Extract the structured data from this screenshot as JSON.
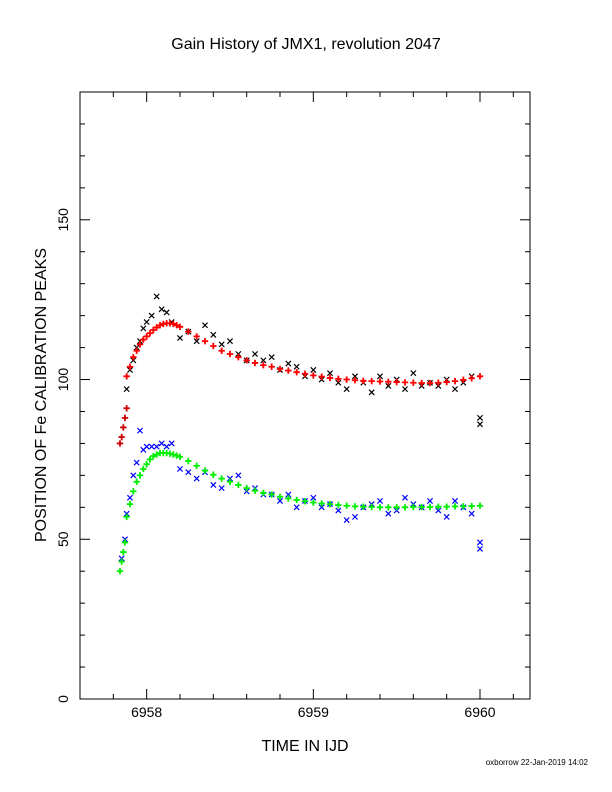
{
  "chart_data": {
    "type": "scatter",
    "title": "Gain History of JMX1, revolution 2047",
    "xlabel": "TIME IN IJD",
    "ylabel": "POSITION OF Fe CALIBRATION PEAKS",
    "xlim": [
      6957.6,
      6960.3
    ],
    "ylim": [
      0,
      190
    ],
    "x_ticks": [
      6958,
      6959,
      6960
    ],
    "y_ticks": [
      0,
      50,
      100,
      150
    ],
    "grid": false,
    "colors": {
      "red": "#ff0000",
      "black": "#000000",
      "green": "#00ee00",
      "blue": "#0000ff",
      "darkred": "#cc0000"
    },
    "series": [
      {
        "color": "#000000",
        "marker": "x",
        "x": [
          6957.88,
          6957.9,
          6957.92,
          6957.94,
          6957.96,
          6957.98,
          6958.0,
          6958.03,
          6958.06,
          6958.09,
          6958.12,
          6958.15,
          6958.2,
          6958.25,
          6958.3,
          6958.35,
          6958.4,
          6958.45,
          6958.5,
          6958.55,
          6958.6,
          6958.65,
          6958.7,
          6958.75,
          6958.8,
          6958.85,
          6958.9,
          6958.95,
          6959.0,
          6959.05,
          6959.1,
          6959.15,
          6959.2,
          6959.25,
          6959.3,
          6959.35,
          6959.4,
          6959.45,
          6959.5,
          6959.55,
          6959.6,
          6959.65,
          6959.7,
          6959.75,
          6959.8,
          6959.85,
          6959.9,
          6959.95,
          6960.0,
          6960.0
        ],
        "y": [
          97,
          103,
          106,
          110,
          112,
          116,
          118,
          120,
          126,
          122,
          121,
          118,
          113,
          115,
          112,
          117,
          114,
          111,
          112,
          108,
          106,
          108,
          106,
          107,
          103,
          105,
          104,
          101,
          103,
          100,
          102,
          99,
          97,
          101,
          99,
          96,
          101,
          98,
          100,
          97,
          102,
          98,
          99,
          98,
          100,
          97,
          99,
          101,
          88,
          86
        ]
      },
      {
        "color": "#ff0000",
        "marker": "+",
        "x": [
          6957.88,
          6957.9,
          6957.92,
          6957.94,
          6957.96,
          6957.98,
          6958.0,
          6958.02,
          6958.04,
          6958.06,
          6958.08,
          6958.1,
          6958.12,
          6958.14,
          6958.16,
          6958.18,
          6958.2,
          6958.25,
          6958.3,
          6958.35,
          6958.4,
          6958.45,
          6958.5,
          6958.55,
          6958.6,
          6958.65,
          6958.7,
          6958.75,
          6958.8,
          6958.85,
          6958.9,
          6958.95,
          6959.0,
          6959.05,
          6959.1,
          6959.15,
          6959.2,
          6959.25,
          6959.3,
          6959.35,
          6959.4,
          6959.45,
          6959.5,
          6959.55,
          6959.6,
          6959.65,
          6959.7,
          6959.75,
          6959.8,
          6959.85,
          6959.9,
          6959.95,
          6960.0
        ],
        "y": [
          101,
          104,
          107,
          109,
          111,
          112.5,
          113.5,
          114.5,
          115.5,
          116.3,
          117,
          117.4,
          117.6,
          117.6,
          117.4,
          117,
          116.5,
          115,
          113.5,
          112,
          110.5,
          109,
          108,
          107,
          106,
          105.2,
          104.5,
          104,
          103.3,
          102.8,
          102.3,
          101.8,
          101.3,
          100.9,
          100.5,
          100.2,
          100,
          99.8,
          99.6,
          99.5,
          99.4,
          99.3,
          99.2,
          99.1,
          99,
          98.9,
          98.9,
          99,
          99.2,
          99.5,
          99.9,
          100.4,
          101
        ]
      },
      {
        "color": "#cc0000",
        "marker": "+",
        "x": [
          6957.84,
          6957.85,
          6957.86,
          6957.87,
          6957.88
        ],
        "y": [
          80,
          82,
          85,
          88,
          91
        ]
      },
      {
        "color": "#0000ff",
        "marker": "x",
        "x": [
          6957.85,
          6957.87,
          6957.88,
          6957.9,
          6957.92,
          6957.94,
          6957.96,
          6957.98,
          6958.0,
          6958.03,
          6958.06,
          6958.09,
          6958.12,
          6958.15,
          6958.2,
          6958.25,
          6958.3,
          6958.35,
          6958.4,
          6958.45,
          6958.5,
          6958.55,
          6958.6,
          6958.65,
          6958.7,
          6958.75,
          6958.8,
          6958.85,
          6958.9,
          6958.95,
          6959.0,
          6959.05,
          6959.1,
          6959.15,
          6959.2,
          6959.25,
          6959.3,
          6959.35,
          6959.4,
          6959.45,
          6959.5,
          6959.55,
          6959.6,
          6959.65,
          6959.7,
          6959.75,
          6959.8,
          6959.85,
          6959.9,
          6959.95,
          6960.0,
          6960.0
        ],
        "y": [
          44,
          50,
          58,
          63,
          70,
          74,
          84,
          78,
          79,
          79,
          79,
          80,
          79,
          80,
          72,
          71,
          69,
          71,
          67,
          66,
          69,
          70,
          65,
          66,
          64,
          64,
          62,
          64,
          60,
          62,
          63,
          60,
          61,
          59,
          56,
          57,
          60,
          61,
          62,
          58,
          59,
          63,
          61,
          60,
          62,
          59,
          57,
          62,
          60,
          58,
          49,
          47
        ]
      },
      {
        "color": "#00ee00",
        "marker": "+",
        "x": [
          6957.84,
          6957.85,
          6957.86,
          6957.87,
          6957.88,
          6957.9,
          6957.92,
          6957.94,
          6957.96,
          6957.98,
          6958.0,
          6958.02,
          6958.04,
          6958.06,
          6958.08,
          6958.1,
          6958.12,
          6958.14,
          6958.16,
          6958.18,
          6958.2,
          6958.25,
          6958.3,
          6958.35,
          6958.4,
          6958.45,
          6958.5,
          6958.55,
          6958.6,
          6958.65,
          6958.7,
          6958.75,
          6958.8,
          6958.85,
          6958.9,
          6958.95,
          6959.0,
          6959.05,
          6959.1,
          6959.15,
          6959.2,
          6959.25,
          6959.3,
          6959.35,
          6959.4,
          6959.45,
          6959.5,
          6959.55,
          6959.6,
          6959.65,
          6959.7,
          6959.75,
          6959.8,
          6959.85,
          6959.9,
          6959.95,
          6960.0
        ],
        "y": [
          40,
          43,
          46,
          49,
          57,
          61,
          65,
          68,
          70,
          72,
          73.5,
          75,
          76,
          76.5,
          77,
          77,
          77,
          76.8,
          76.5,
          76.2,
          75.8,
          74.5,
          73,
          71.5,
          70.2,
          69,
          68,
          67,
          66,
          65.2,
          64.5,
          64,
          63.3,
          62.8,
          62.3,
          61.9,
          61.5,
          61.2,
          61,
          60.7,
          60.5,
          60.3,
          60.2,
          60.1,
          60,
          60,
          60,
          60,
          60.1,
          60.1,
          60.1,
          60.2,
          60.2,
          60.3,
          60.3,
          60.4,
          60.5
        ]
      }
    ]
  },
  "footer": "oxborrow 22-Jan-2019 14:02"
}
